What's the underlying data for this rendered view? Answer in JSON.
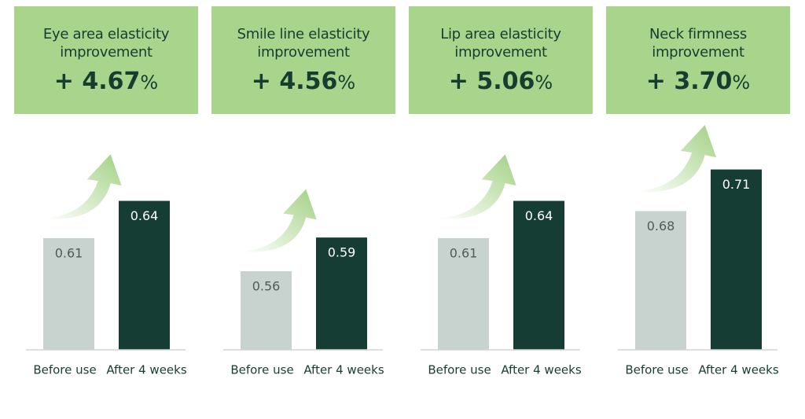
{
  "chart_data": [
    {
      "type": "bar",
      "title": "Eye area elasticity improvement",
      "change": "+ 4.67",
      "change_unit": "%",
      "categories": [
        "Before use",
        "After 4 weeks"
      ],
      "values": [
        0.61,
        0.64
      ],
      "colors": [
        "#c8d3cf",
        "#163d33"
      ],
      "ylim": [
        0.52,
        0.71
      ]
    },
    {
      "type": "bar",
      "title": "Smile line elasticity improvement",
      "change": "+ 4.56",
      "change_unit": "%",
      "categories": [
        "Before use",
        "After 4 weeks"
      ],
      "values": [
        0.56,
        0.59
      ],
      "colors": [
        "#c8d3cf",
        "#163d33"
      ],
      "ylim": [
        0.49,
        0.7
      ]
    },
    {
      "type": "bar",
      "title": "Lip area elasticity improvement",
      "change": "+ 5.06",
      "change_unit": "%",
      "categories": [
        "Before use",
        "After 4 weeks"
      ],
      "values": [
        0.61,
        0.64
      ],
      "colors": [
        "#c8d3cf",
        "#163d33"
      ],
      "ylim": [
        0.52,
        0.71
      ]
    },
    {
      "type": "bar",
      "title": "Neck firmness improvement",
      "change": "+ 3.70",
      "change_unit": "%",
      "categories": [
        "Before use",
        "After 4 weeks"
      ],
      "values": [
        0.68,
        0.71
      ],
      "colors": [
        "#c8d3cf",
        "#163d33"
      ],
      "ylim": [
        0.58,
        0.75
      ]
    }
  ]
}
